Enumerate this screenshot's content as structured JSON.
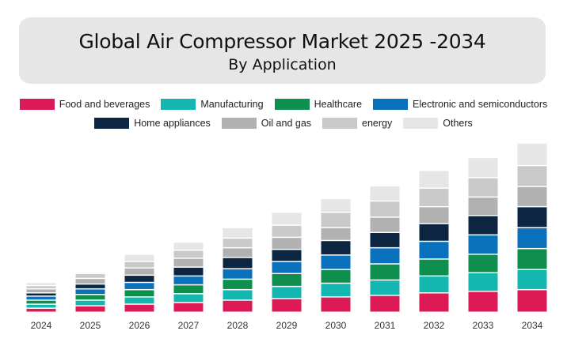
{
  "header": {
    "title": "Global Air Compressor Market 2025 -2034",
    "subtitle": "By Application"
  },
  "chart_data": {
    "type": "bar",
    "stacked": true,
    "title": "Global Air Compressor Market 2025 -2034",
    "subtitle": "By Application",
    "xlabel": "",
    "ylabel": "",
    "grid": false,
    "legend_position": "top",
    "categories": [
      "2024",
      "2025",
      "2026",
      "2027",
      "2028",
      "2029",
      "2030",
      "2031",
      "2032",
      "2033",
      "2034"
    ],
    "series": [
      {
        "name": "Food and beverages",
        "color": "#dc1a55",
        "values": [
          5,
          8,
          10,
          12,
          15,
          17,
          19,
          21,
          24,
          26,
          28
        ]
      },
      {
        "name": "Manufacturing",
        "color": "#13b7b0",
        "values": [
          5,
          7,
          9,
          11,
          13,
          15,
          17,
          19,
          21,
          23,
          25
        ]
      },
      {
        "name": "Healthcare",
        "color": "#0e8f4d",
        "values": [
          5,
          7,
          9,
          11,
          13,
          16,
          17,
          20,
          21,
          23,
          26
        ]
      },
      {
        "name": "Electronic and semiconductors",
        "color": "#0a72bd",
        "values": [
          5,
          7,
          9,
          11,
          13,
          15,
          18,
          20,
          22,
          24,
          26
        ]
      },
      {
        "name": "Home appliances",
        "color": "#0c2540",
        "values": [
          4,
          6,
          9,
          11,
          14,
          15,
          18,
          19,
          22,
          24,
          26
        ]
      },
      {
        "name": "Oil and gas",
        "color": "#b1b1b1",
        "values": [
          5,
          7,
          9,
          11,
          12,
          15,
          16,
          19,
          21,
          23,
          25
        ]
      },
      {
        "name": "energy",
        "color": "#c9c9c9",
        "values": [
          4,
          6,
          8,
          10,
          12,
          15,
          19,
          20,
          23,
          24,
          26
        ]
      },
      {
        "name": "Others",
        "color": "#e6e6e6",
        "values": [
          4,
          2,
          9,
          10,
          13,
          16,
          17,
          19,
          22,
          25,
          28
        ]
      }
    ]
  }
}
